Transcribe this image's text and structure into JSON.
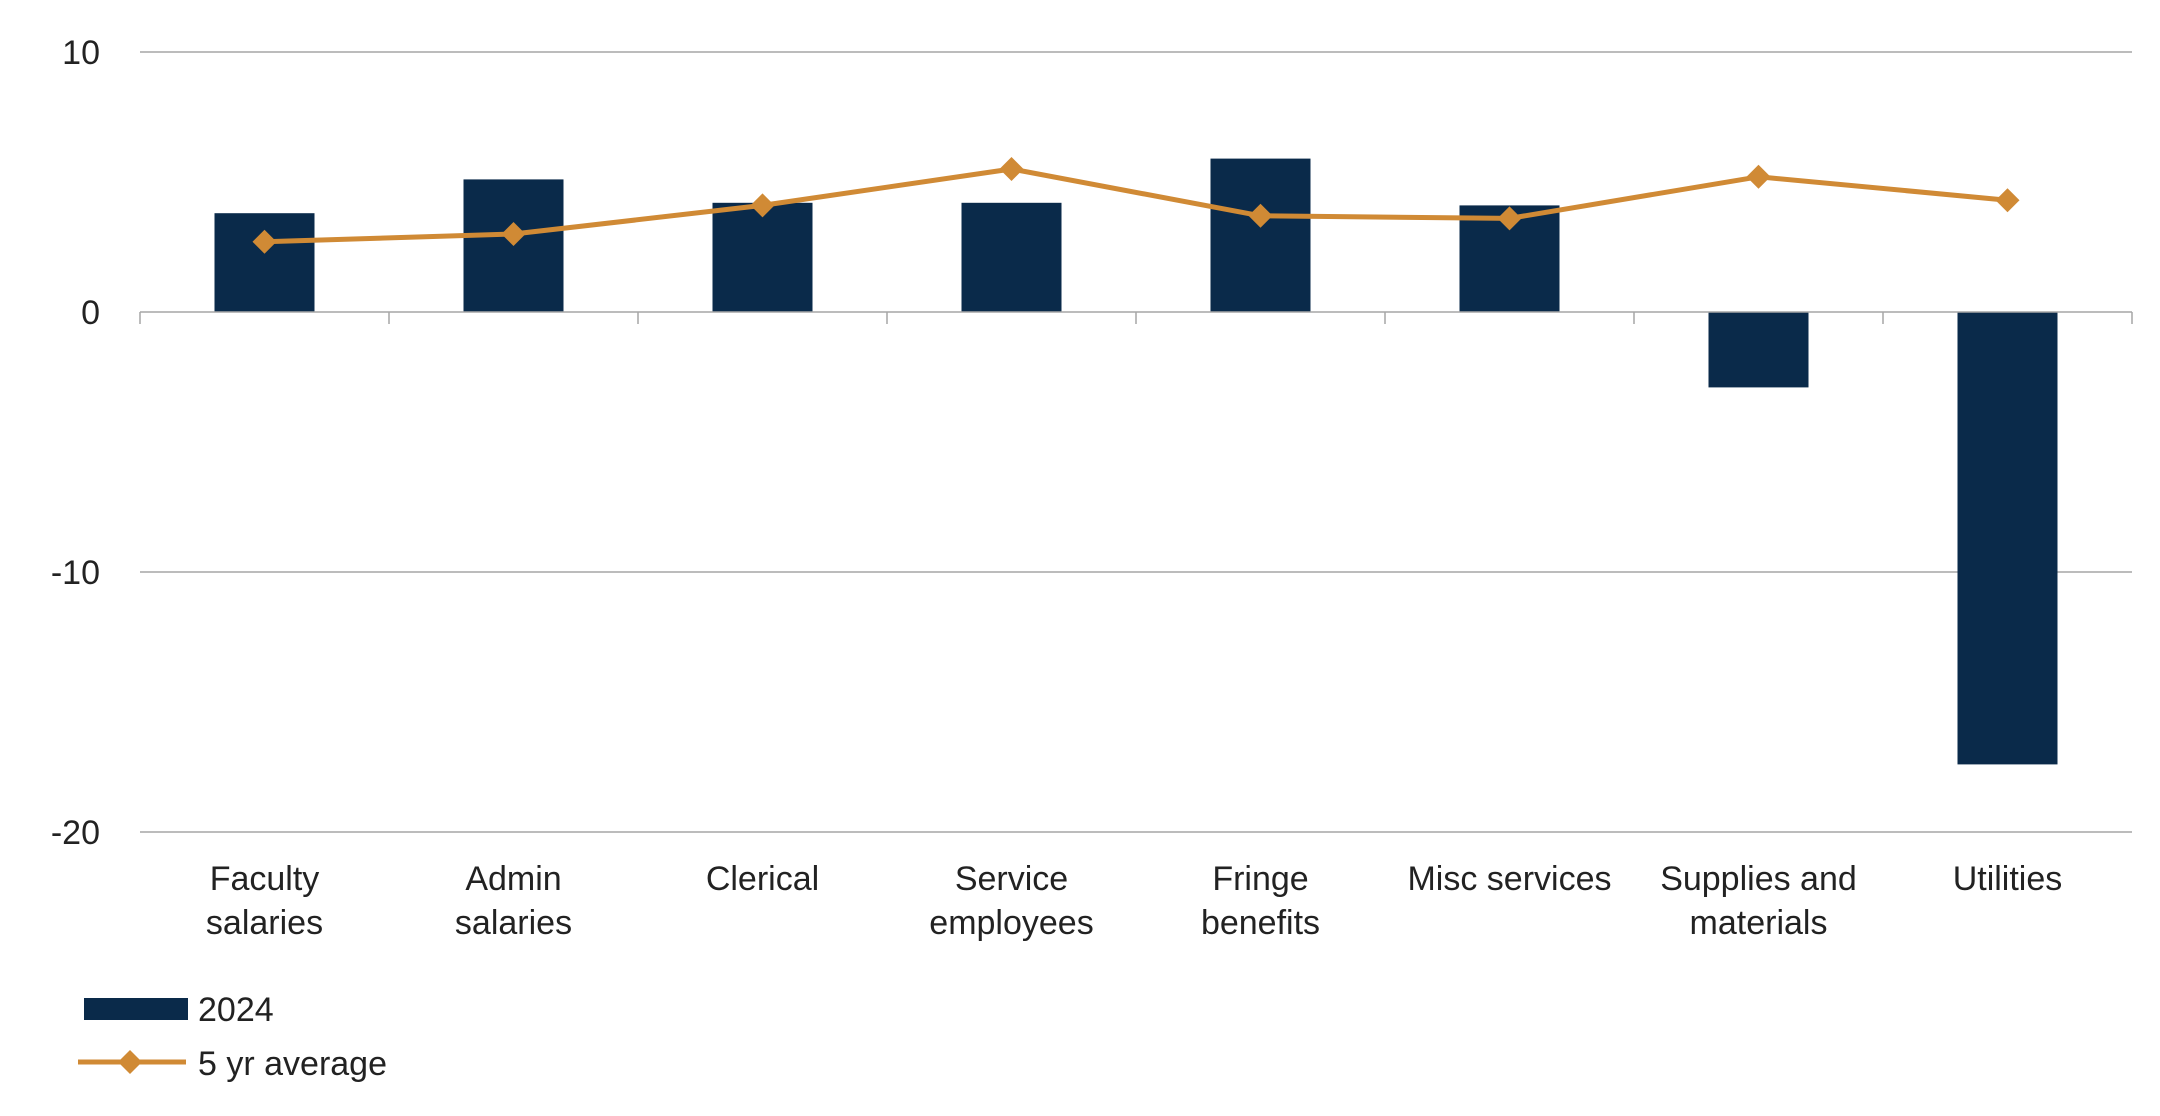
{
  "colors": {
    "bar": "#0a2a4a",
    "line": "#d08a35",
    "grid": "#a6a6a6",
    "axis": "#a6a6a6",
    "text": "#222222"
  },
  "chart_data": {
    "type": "bar",
    "title": "",
    "xlabel": "",
    "ylabel": "",
    "ylim": [
      -20,
      10
    ],
    "yticks": [
      10,
      0,
      -10,
      -20
    ],
    "grid": true,
    "legend_position": "bottom-left",
    "categories": [
      [
        "Faculty",
        "salaries"
      ],
      [
        "Admin",
        "salaries"
      ],
      [
        "Clerical"
      ],
      [
        "Service",
        "employees"
      ],
      [
        "Fringe",
        "benefits"
      ],
      [
        "Misc services"
      ],
      [
        "Supplies and",
        "materials"
      ],
      [
        "Utilities"
      ]
    ],
    "series": [
      {
        "name": "2024",
        "type": "bar",
        "values": [
          3.8,
          5.1,
          4.2,
          4.2,
          5.9,
          4.1,
          -2.9,
          -17.4
        ]
      },
      {
        "name": "5 yr average",
        "type": "line",
        "marker": "diamond",
        "values": [
          2.7,
          3.0,
          4.1,
          5.5,
          3.7,
          3.6,
          5.2,
          4.3
        ]
      }
    ]
  }
}
